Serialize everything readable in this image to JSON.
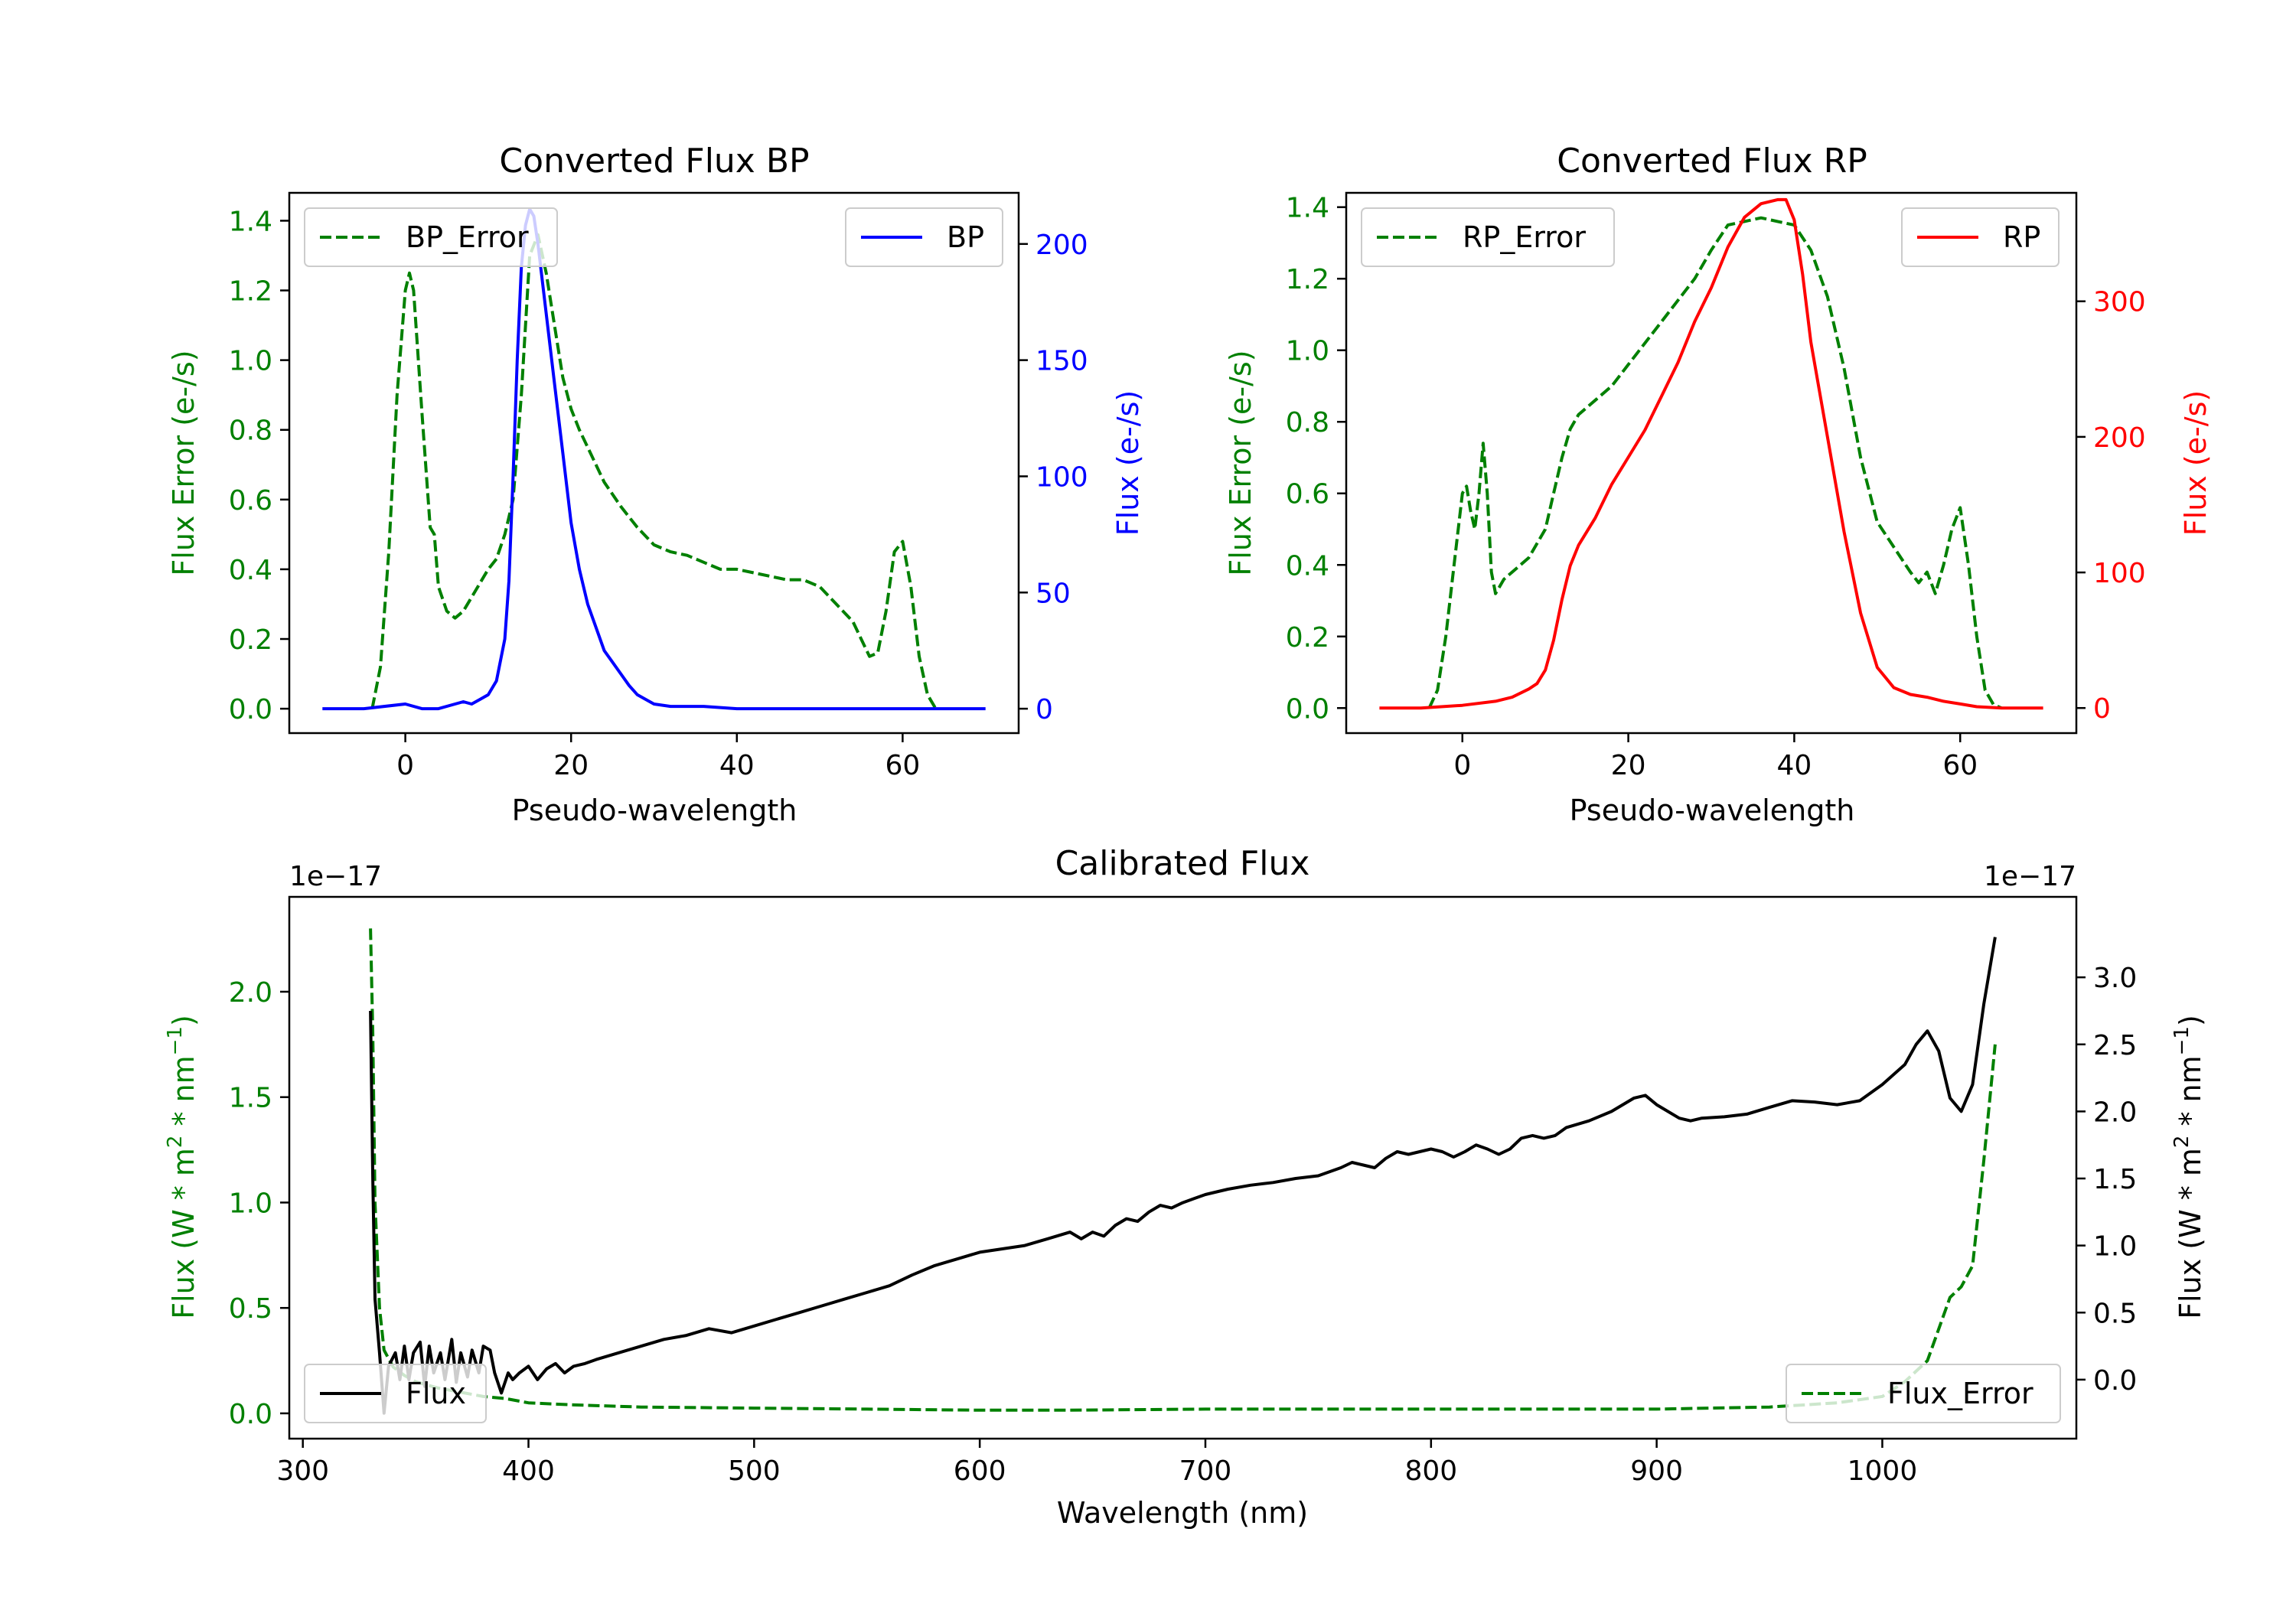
{
  "colors": {
    "green": "#008000",
    "blue": "#0000ff",
    "red": "#ff0000",
    "black": "#000000"
  },
  "chart_data": [
    {
      "id": "bp",
      "type": "line",
      "title": "Converted Flux BP",
      "xlabel": "Pseudo-wavelength",
      "ylabel_left": "Flux Error (e-/s)",
      "ylabel_right": "Flux (e-/s)",
      "xlim": [
        -14,
        74
      ],
      "ylim_left": [
        -0.07,
        1.48
      ],
      "ylim_right": [
        -10.5,
        222
      ],
      "xticks": [
        0,
        20,
        40,
        60
      ],
      "xtick_labels": [
        "0",
        "20",
        "40",
        "60"
      ],
      "yticks_left": [
        0.0,
        0.2,
        0.4,
        0.6,
        0.8,
        1.0,
        1.2,
        1.4
      ],
      "ytick_labels_left": [
        "0.0",
        "0.2",
        "0.4",
        "0.6",
        "0.8",
        "1.0",
        "1.2",
        "1.4"
      ],
      "yticks_right": [
        0,
        50,
        100,
        150,
        200
      ],
      "ytick_labels_right": [
        "0",
        "50",
        "100",
        "150",
        "200"
      ],
      "legend_left": "BP_Error",
      "legend_right": "BP",
      "series": [
        {
          "name": "BP_Error",
          "axis": "left",
          "color": "#008000",
          "dash": true,
          "x": [
            -4,
            -3,
            -2,
            -1,
            0,
            0.5,
            1,
            2,
            3,
            3.5,
            4,
            5,
            6,
            7,
            8,
            9,
            10,
            11,
            12,
            13,
            14,
            15,
            16,
            17,
            18,
            19,
            20,
            21,
            22,
            24,
            26,
            28,
            30,
            32,
            34,
            36,
            38,
            40,
            44,
            46,
            48,
            50,
            52,
            54,
            55,
            56,
            57,
            58,
            59,
            60,
            61,
            62,
            63,
            64
          ],
          "y": [
            0.0,
            0.12,
            0.45,
            0.9,
            1.2,
            1.25,
            1.2,
            0.85,
            0.52,
            0.5,
            0.35,
            0.28,
            0.26,
            0.28,
            0.32,
            0.36,
            0.4,
            0.43,
            0.5,
            0.6,
            0.9,
            1.3,
            1.36,
            1.25,
            1.1,
            0.95,
            0.86,
            0.8,
            0.75,
            0.65,
            0.58,
            0.52,
            0.47,
            0.45,
            0.44,
            0.42,
            0.4,
            0.4,
            0.38,
            0.37,
            0.37,
            0.35,
            0.3,
            0.25,
            0.2,
            0.15,
            0.16,
            0.28,
            0.45,
            0.48,
            0.35,
            0.15,
            0.04,
            0.0
          ]
        },
        {
          "name": "BP",
          "axis": "right",
          "color": "#0000ff",
          "dash": false,
          "x": [
            -10,
            -5,
            0,
            2,
            4,
            6,
            7,
            8,
            9,
            10,
            11,
            12,
            12.5,
            13,
            13.5,
            14,
            14.5,
            15,
            15.5,
            16,
            17,
            18,
            19,
            20,
            21,
            22,
            23,
            24,
            25,
            26,
            27,
            28,
            29,
            30,
            32,
            34,
            36,
            40,
            50,
            60,
            70
          ],
          "y": [
            0,
            0,
            2,
            0,
            0,
            2,
            3,
            2,
            4,
            6,
            12,
            30,
            55,
            100,
            150,
            190,
            208,
            215,
            212,
            200,
            170,
            140,
            110,
            80,
            60,
            45,
            35,
            25,
            20,
            15,
            10,
            6,
            4,
            2,
            1,
            1,
            1,
            0,
            0,
            0,
            0
          ]
        }
      ]
    },
    {
      "id": "rp",
      "type": "line",
      "title": "Converted Flux RP",
      "xlabel": "Pseudo-wavelength",
      "ylabel_left": "Flux Error (e-/s)",
      "ylabel_right": "Flux (e-/s)",
      "xlim": [
        -14,
        74
      ],
      "ylim_left": [
        -0.07,
        1.44
      ],
      "ylim_right": [
        -18.5,
        380
      ],
      "xticks": [
        0,
        20,
        40,
        60
      ],
      "xtick_labels": [
        "0",
        "20",
        "40",
        "60"
      ],
      "yticks_left": [
        0.0,
        0.2,
        0.4,
        0.6,
        0.8,
        1.0,
        1.2,
        1.4
      ],
      "ytick_labels_left": [
        "0.0",
        "0.2",
        "0.4",
        "0.6",
        "0.8",
        "1.0",
        "1.2",
        "1.4"
      ],
      "yticks_right": [
        0,
        100,
        200,
        300
      ],
      "ytick_labels_right": [
        "0",
        "100",
        "200",
        "300"
      ],
      "legend_left": "RP_Error",
      "legend_right": "RP",
      "series": [
        {
          "name": "RP_Error",
          "axis": "left",
          "color": "#008000",
          "dash": true,
          "x": [
            -4,
            -3,
            -2,
            -1,
            0,
            0.5,
            1,
            1.5,
            2,
            2.5,
            3,
            3.5,
            4,
            5,
            6,
            8,
            10,
            11,
            12,
            13,
            14,
            16,
            18,
            20,
            22,
            24,
            26,
            28,
            30,
            32,
            34,
            36,
            38,
            40,
            42,
            44,
            46,
            48,
            50,
            52,
            54,
            55,
            56,
            57,
            58,
            59,
            60,
            61,
            62,
            63,
            64,
            65
          ],
          "y": [
            0.0,
            0.05,
            0.2,
            0.4,
            0.6,
            0.62,
            0.55,
            0.5,
            0.6,
            0.74,
            0.6,
            0.38,
            0.32,
            0.36,
            0.38,
            0.42,
            0.5,
            0.6,
            0.7,
            0.78,
            0.82,
            0.86,
            0.9,
            0.96,
            1.02,
            1.08,
            1.14,
            1.2,
            1.28,
            1.35,
            1.36,
            1.37,
            1.36,
            1.35,
            1.28,
            1.15,
            0.95,
            0.7,
            0.52,
            0.45,
            0.38,
            0.35,
            0.38,
            0.32,
            0.4,
            0.5,
            0.56,
            0.4,
            0.2,
            0.05,
            0.01,
            0.0
          ]
        },
        {
          "name": "RP",
          "axis": "right",
          "color": "#ff0000",
          "dash": false,
          "x": [
            -10,
            -5,
            0,
            4,
            6,
            8,
            9,
            10,
            11,
            12,
            13,
            14,
            16,
            18,
            20,
            22,
            24,
            26,
            28,
            30,
            32,
            34,
            36,
            38,
            39,
            40,
            41,
            42,
            44,
            46,
            48,
            50,
            52,
            54,
            56,
            58,
            60,
            62,
            65,
            70
          ],
          "y": [
            0,
            0,
            2,
            5,
            8,
            14,
            18,
            28,
            50,
            80,
            105,
            120,
            140,
            165,
            185,
            205,
            230,
            255,
            285,
            310,
            340,
            362,
            372,
            375,
            375,
            360,
            320,
            270,
            200,
            130,
            70,
            30,
            15,
            10,
            8,
            5,
            3,
            1,
            0,
            0
          ]
        }
      ]
    },
    {
      "id": "calibrated",
      "type": "line",
      "title": "Calibrated Flux",
      "xlabel": "Wavelength (nm)",
      "ylabel_left": "Flux (W * m",
      "ylabel_right": "Flux (W * m",
      "ylabel_sup_two": "2",
      "ylabel_mid": " * nm",
      "ylabel_sup_neg": "−1",
      "ylabel_end": ")",
      "offset_left": "1e−17",
      "offset_right": "1e−17",
      "xlim": [
        294,
        1086
      ],
      "ylim_left": [
        -0.12,
        2.45
      ],
      "ylim_right": [
        -0.44,
        3.6
      ],
      "xticks": [
        300,
        400,
        500,
        600,
        700,
        800,
        900,
        1000
      ],
      "xtick_labels": [
        "300",
        "400",
        "500",
        "600",
        "700",
        "800",
        "900",
        "1000"
      ],
      "yticks_left": [
        0.0,
        0.5,
        1.0,
        1.5,
        2.0
      ],
      "ytick_labels_left": [
        "0.0",
        "0.5",
        "1.0",
        "1.5",
        "2.0"
      ],
      "yticks_right": [
        0.0,
        0.5,
        1.0,
        1.5,
        2.0,
        2.5,
        3.0
      ],
      "ytick_labels_right": [
        "0.0",
        "0.5",
        "1.0",
        "1.5",
        "2.0",
        "2.5",
        "3.0"
      ],
      "legend_left": "Flux",
      "legend_right": "Flux_Error",
      "series": [
        {
          "name": "Flux_Error",
          "axis": "left",
          "color": "#008000",
          "dash": true,
          "x": [
            330,
            331,
            332,
            334,
            336,
            340,
            345,
            350,
            360,
            370,
            380,
            390,
            400,
            420,
            450,
            500,
            550,
            600,
            640,
            700,
            800,
            900,
            950,
            980,
            1000,
            1010,
            1020,
            1025,
            1030,
            1035,
            1040,
            1045,
            1050
          ],
          "y": [
            2.3,
            1.8,
            1.0,
            0.5,
            0.3,
            0.22,
            0.18,
            0.15,
            0.12,
            0.1,
            0.08,
            0.07,
            0.05,
            0.04,
            0.03,
            0.025,
            0.02,
            0.015,
            0.015,
            0.02,
            0.02,
            0.02,
            0.03,
            0.05,
            0.08,
            0.15,
            0.25,
            0.4,
            0.55,
            0.6,
            0.7,
            1.2,
            1.75
          ]
        },
        {
          "name": "Flux",
          "axis": "right",
          "color": "#000000",
          "dash": false,
          "x": [
            330,
            331,
            332,
            334,
            336,
            338,
            341,
            343,
            345,
            347,
            349,
            352,
            354,
            356,
            358,
            361,
            363,
            366,
            368,
            370,
            373,
            375,
            378,
            380,
            383,
            385,
            388,
            391,
            393,
            396,
            400,
            404,
            408,
            412,
            416,
            420,
            425,
            430,
            440,
            450,
            460,
            470,
            480,
            490,
            500,
            510,
            520,
            530,
            540,
            550,
            560,
            570,
            580,
            590,
            600,
            620,
            630,
            640,
            645,
            650,
            655,
            660,
            665,
            670,
            675,
            680,
            685,
            690,
            695,
            700,
            705,
            710,
            720,
            730,
            740,
            750,
            760,
            765,
            770,
            775,
            780,
            785,
            790,
            800,
            805,
            810,
            815,
            820,
            825,
            830,
            835,
            840,
            845,
            850,
            855,
            860,
            870,
            880,
            890,
            895,
            900,
            910,
            915,
            920,
            930,
            940,
            950,
            960,
            970,
            980,
            990,
            1000,
            1010,
            1015,
            1020,
            1025,
            1030,
            1035,
            1040,
            1045,
            1050
          ],
          "y": [
            2.75,
            1.5,
            0.6,
            0.2,
            -0.25,
            0.1,
            0.2,
            0.0,
            0.25,
            0.0,
            0.2,
            0.28,
            -0.05,
            0.25,
            0.05,
            0.2,
            0.0,
            0.3,
            -0.02,
            0.2,
            0.02,
            0.22,
            0.05,
            0.25,
            0.22,
            0.05,
            -0.1,
            0.05,
            0.0,
            0.05,
            0.1,
            0.0,
            0.08,
            0.12,
            0.05,
            0.1,
            0.12,
            0.15,
            0.2,
            0.25,
            0.3,
            0.33,
            0.38,
            0.35,
            0.4,
            0.45,
            0.5,
            0.55,
            0.6,
            0.65,
            0.7,
            0.78,
            0.85,
            0.9,
            0.95,
            1.0,
            1.05,
            1.1,
            1.05,
            1.1,
            1.07,
            1.15,
            1.2,
            1.18,
            1.25,
            1.3,
            1.28,
            1.32,
            1.35,
            1.38,
            1.4,
            1.42,
            1.45,
            1.47,
            1.5,
            1.52,
            1.58,
            1.62,
            1.6,
            1.58,
            1.65,
            1.7,
            1.68,
            1.72,
            1.7,
            1.66,
            1.7,
            1.75,
            1.72,
            1.68,
            1.72,
            1.8,
            1.82,
            1.8,
            1.82,
            1.88,
            1.93,
            2.0,
            2.1,
            2.12,
            2.05,
            1.95,
            1.93,
            1.95,
            1.96,
            1.98,
            2.03,
            2.08,
            2.07,
            2.05,
            2.08,
            2.2,
            2.35,
            2.5,
            2.6,
            2.45,
            2.1,
            2.0,
            2.2,
            2.8,
            3.3
          ]
        }
      ]
    }
  ]
}
